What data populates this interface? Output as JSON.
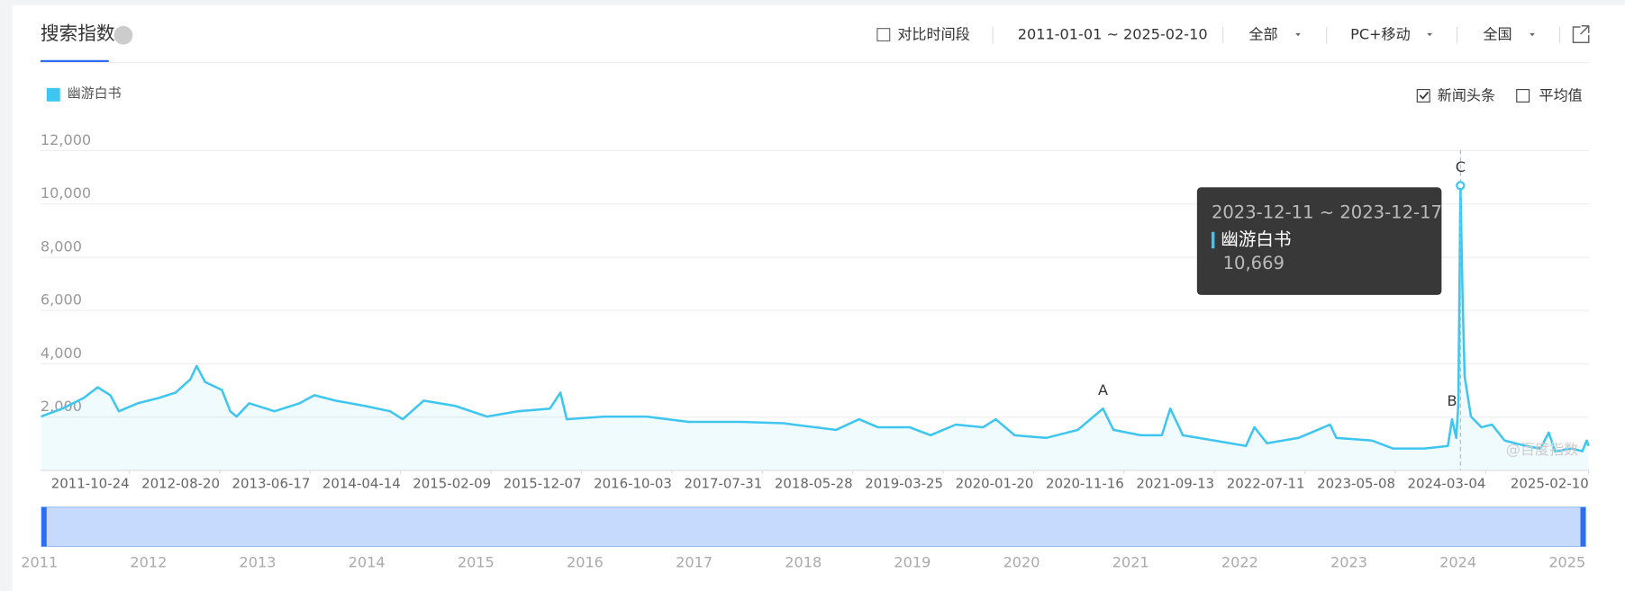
{
  "header": {
    "title": "搜索指数",
    "compare": "对比时间段",
    "range": "2011-01-01 ~ 2025-02-10",
    "source": "全部",
    "device": "PC+移动",
    "region": "全国"
  },
  "options": {
    "news": "新闻头条",
    "average": "平均值"
  },
  "chart_data": {
    "type": "line",
    "series": [
      {
        "name": "幽游白书",
        "color": "#3ec6f0",
        "x": [
          "2011-01-03",
          "2011-03-15",
          "2011-05-25",
          "2011-07-11",
          "2011-08-22",
          "2011-09-19",
          "2011-11-21",
          "2012-01-30",
          "2012-03-26",
          "2012-05-14",
          "2012-06-04",
          "2012-07-02",
          "2012-08-27",
          "2012-09-24",
          "2012-10-15",
          "2012-11-26",
          "2013-02-18",
          "2013-05-13",
          "2013-07-01",
          "2013-09-09",
          "2013-12-16",
          "2014-03-10",
          "2014-04-21",
          "2014-06-30",
          "2014-10-13",
          "2015-01-26",
          "2015-05-11",
          "2015-08-24",
          "2015-09-28",
          "2015-10-19",
          "2016-02-22",
          "2016-07-11",
          "2016-11-28",
          "2017-05-22",
          "2017-10-09",
          "2018-04-02",
          "2018-06-18",
          "2018-08-20",
          "2018-12-03",
          "2019-02-11",
          "2019-05-06",
          "2019-08-05",
          "2019-09-16",
          "2019-11-18",
          "2020-03-02",
          "2020-06-15",
          "2020-09-07",
          "2020-10-12",
          "2021-01-11",
          "2021-03-22",
          "2021-04-19",
          "2021-05-31",
          "2021-09-13",
          "2021-12-27",
          "2022-01-24",
          "2022-03-07",
          "2022-06-20",
          "2022-10-03",
          "2022-10-24",
          "2023-02-20",
          "2023-05-01",
          "2023-08-14",
          "2023-10-30",
          "2023-11-13",
          "2023-11-27",
          "2023-12-04",
          "2023-12-11",
          "2023-12-18",
          "2023-12-25",
          "2024-01-15",
          "2024-02-19",
          "2024-03-25",
          "2024-05-06",
          "2024-07-15",
          "2024-09-02",
          "2024-09-30",
          "2024-10-21",
          "2024-12-16",
          "2025-01-20",
          "2025-02-03",
          "2025-02-10"
        ],
        "values": [
          2000,
          2300,
          2700,
          3100,
          2800,
          2200,
          2500,
          2700,
          2900,
          3400,
          3900,
          3300,
          3000,
          2200,
          2000,
          2500,
          2200,
          2500,
          2800,
          2600,
          2400,
          2200,
          1900,
          2600,
          2400,
          2000,
          2200,
          2300,
          2900,
          1900,
          2000,
          2000,
          1800,
          1800,
          1750,
          1500,
          1900,
          1600,
          1600,
          1300,
          1700,
          1600,
          1900,
          1300,
          1200,
          1500,
          2300,
          1500,
          1300,
          1300,
          2300,
          1300,
          1100,
          900,
          1600,
          1000,
          1200,
          1700,
          1200,
          1100,
          800,
          800,
          900,
          1900,
          1200,
          2500,
          10669,
          6500,
          3500,
          2000,
          1600,
          1700,
          1100,
          900,
          800,
          1400,
          700,
          800,
          700,
          1100,
          900
        ]
      }
    ],
    "xlim": [
      "2011-01-01",
      "2025-02-10"
    ],
    "xticks": [
      "2011-10-24",
      "2012-08-20",
      "2013-06-17",
      "2014-04-14",
      "2015-02-09",
      "2015-12-07",
      "2016-10-03",
      "2017-07-31",
      "2018-05-28",
      "2019-03-25",
      "2020-01-20",
      "2020-11-16",
      "2021-09-13",
      "2022-07-11",
      "2023-05-08",
      "2024-03-04",
      "2025-02-10"
    ],
    "ylim": [
      0,
      12000
    ],
    "yticks": [
      {
        "value": 2000,
        "label": "2,000"
      },
      {
        "value": 4000,
        "label": "4,000"
      },
      {
        "value": 6000,
        "label": "6,000"
      },
      {
        "value": 8000,
        "label": "8,000"
      },
      {
        "value": 10000,
        "label": "10,000"
      },
      {
        "value": 12000,
        "label": "12,000"
      }
    ],
    "grid": true,
    "annotations": [
      {
        "text": "A",
        "x": "2020-09-07"
      },
      {
        "text": "B",
        "x": "2023-11-13"
      },
      {
        "text": "C",
        "x": "2023-12-11"
      }
    ],
    "tooltip": {
      "title": "2023-12-11 ~ 2023-12-17",
      "name": "幽游白书",
      "value": "10,669"
    },
    "watermark": "@百度指数"
  },
  "navigator": {
    "years": [
      "2011",
      "2012",
      "2013",
      "2014",
      "2015",
      "2016",
      "2017",
      "2018",
      "2019",
      "2020",
      "2021",
      "2022",
      "2023",
      "2024",
      "2025"
    ]
  }
}
